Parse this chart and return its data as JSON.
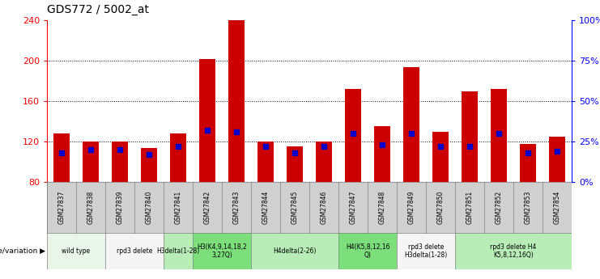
{
  "title": "GDS772 / 5002_at",
  "samples": [
    "GSM27837",
    "GSM27838",
    "GSM27839",
    "GSM27840",
    "GSM27841",
    "GSM27842",
    "GSM27843",
    "GSM27844",
    "GSM27845",
    "GSM27846",
    "GSM27847",
    "GSM27848",
    "GSM27849",
    "GSM27850",
    "GSM27851",
    "GSM27852",
    "GSM27853",
    "GSM27854"
  ],
  "counts": [
    128,
    120,
    120,
    114,
    128,
    202,
    240,
    120,
    115,
    120,
    172,
    135,
    194,
    130,
    170,
    172,
    118,
    125
  ],
  "percentiles": [
    18,
    20,
    20,
    17,
    22,
    32,
    31,
    22,
    18,
    22,
    30,
    23,
    30,
    22,
    22,
    30,
    18,
    19
  ],
  "ymin": 80,
  "ymax": 240,
  "yticks_left": [
    80,
    120,
    160,
    200,
    240
  ],
  "yticks_right": [
    0,
    25,
    50,
    75,
    100
  ],
  "bar_color": "#cc0000",
  "percentile_color": "#0000cc",
  "bar_width": 0.55,
  "genotype_groups": [
    {
      "label": "wild type",
      "start": 0,
      "end": 2,
      "color": "#e8f5e8",
      "border": true
    },
    {
      "label": "rpd3 delete",
      "start": 2,
      "end": 4,
      "color": "#f5f5f5",
      "border": true
    },
    {
      "label": "H3delta(1-28)",
      "start": 4,
      "end": 5,
      "color": "#b8edb8",
      "border": true
    },
    {
      "label": "H3(K4,9,14,18,2\n3,27Q)",
      "start": 5,
      "end": 7,
      "color": "#7cdf7c",
      "border": true
    },
    {
      "label": "H4delta(2-26)",
      "start": 7,
      "end": 10,
      "color": "#b8edb8",
      "border": true
    },
    {
      "label": "H4(K5,8,12,16\nQ)",
      "start": 10,
      "end": 12,
      "color": "#7cdf7c",
      "border": true
    },
    {
      "label": "rpd3 delete\nH3delta(1-28)",
      "start": 12,
      "end": 14,
      "color": "#f5f5f5",
      "border": true
    },
    {
      "label": "rpd3 delete H4\nK5,8,12,16Q)",
      "start": 14,
      "end": 18,
      "color": "#b8edb8",
      "border": true
    }
  ],
  "sample_row_color": "#d0d0d0",
  "title_fontsize": 10,
  "tick_fontsize": 8,
  "label_fontsize": 5.5,
  "genotype_fontsize": 5.5,
  "legend_fontsize": 7,
  "grid_color": "black",
  "grid_linestyle": ":",
  "grid_linewidth": 0.7
}
